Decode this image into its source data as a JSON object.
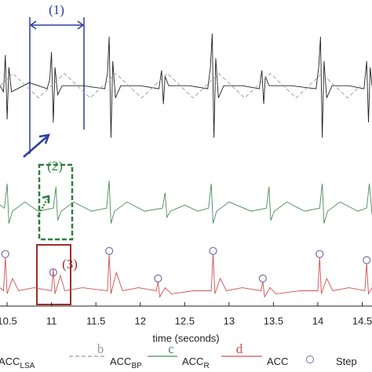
{
  "chart_data": {
    "type": "line",
    "xlabel": "time (seconds)",
    "xlim": [
      10.42,
      14.61
    ],
    "xticks": [
      10.5,
      11,
      11.5,
      12,
      12.5,
      13,
      13.5,
      14,
      14.5
    ],
    "ylim": [
      0,
      100
    ],
    "annotations": [
      "(1)",
      "(2)",
      "(3)"
    ],
    "series": [
      {
        "name": "ACC_LSA",
        "color": "#222222",
        "style": "solid",
        "x": [
          10.42,
          10.46,
          10.48,
          10.5,
          10.52,
          10.55,
          10.75,
          10.95,
          10.98,
          11.0,
          11.02,
          11.04,
          11.07,
          11.12,
          11.35,
          11.6,
          11.63,
          11.65,
          11.67,
          11.69,
          11.72,
          11.78,
          12.0,
          12.21,
          12.24,
          12.26,
          12.28,
          12.32,
          12.55,
          12.76,
          12.79,
          12.81,
          12.83,
          12.85,
          12.88,
          12.94,
          13.15,
          13.34,
          13.37,
          13.39,
          13.41,
          13.45,
          13.7,
          13.98,
          14.01,
          14.03,
          14.05,
          14.07,
          14.1,
          14.16,
          14.35,
          14.52,
          14.55,
          14.57,
          14.59,
          14.61
        ],
        "values": [
          72,
          70,
          82,
          61,
          78,
          70,
          73,
          71,
          74,
          83,
          60,
          78,
          69,
          72,
          72,
          71,
          76,
          88,
          55,
          80,
          68,
          72,
          72,
          71,
          77,
          66,
          75,
          72,
          72,
          71,
          78,
          89,
          55,
          81,
          68,
          72,
          72,
          71,
          77,
          66,
          75,
          72,
          72,
          71,
          78,
          88,
          55,
          80,
          68,
          72,
          72,
          71,
          80,
          60,
          78,
          72
        ]
      },
      {
        "name": "ACC_BP",
        "letter": "b",
        "color": "#999999",
        "style": "dashed",
        "x": [
          10.42,
          10.565,
          10.71,
          10.855,
          11.0,
          11.145,
          11.29,
          11.435,
          11.58,
          11.725,
          11.87,
          12.015,
          12.16,
          12.305,
          12.45,
          12.595,
          12.74,
          12.885,
          13.03,
          13.175,
          13.32,
          13.465,
          13.61,
          13.755,
          13.9,
          14.045,
          14.19,
          14.335,
          14.48
        ],
        "values": [
          72,
          76,
          72,
          68,
          72,
          76,
          72,
          68,
          72,
          76,
          72,
          68,
          72,
          76,
          72,
          68,
          72,
          76,
          72,
          68,
          72,
          76,
          72,
          68,
          72,
          76,
          72,
          68,
          72
        ]
      },
      {
        "name": "ACC_R",
        "letter": "c",
        "color": "#4a8c5c",
        "style": "solid",
        "x": [
          10.42,
          10.47,
          10.5,
          10.52,
          10.56,
          10.7,
          10.85,
          11.02,
          11.05,
          11.07,
          11.11,
          11.25,
          11.45,
          11.62,
          11.65,
          11.67,
          11.71,
          11.85,
          12.05,
          12.25,
          12.28,
          12.3,
          12.34,
          12.5,
          12.65,
          12.77,
          12.8,
          12.82,
          12.86,
          13.0,
          13.25,
          13.42,
          13.45,
          13.47,
          13.51,
          13.65,
          13.85,
          14.02,
          14.05,
          14.07,
          14.11,
          14.25,
          14.45,
          14.55,
          14.58,
          14.61
        ],
        "values": [
          33,
          32,
          40,
          27,
          31,
          34,
          31,
          32,
          39,
          28,
          31,
          34,
          31,
          32,
          41,
          27,
          31,
          34,
          31,
          32,
          37,
          29,
          31,
          33,
          31,
          32,
          40,
          27,
          31,
          34,
          31,
          32,
          39,
          28,
          31,
          34,
          31,
          32,
          40,
          27,
          31,
          34,
          31,
          32,
          40,
          30
        ]
      },
      {
        "name": "ACC",
        "letter": "d",
        "color": "#d05050",
        "style": "solid",
        "x": [
          10.42,
          10.46,
          10.48,
          10.5,
          10.56,
          10.63,
          10.8,
          11.0,
          11.02,
          11.04,
          11.1,
          11.15,
          11.35,
          11.63,
          11.65,
          11.67,
          11.73,
          11.8,
          11.98,
          12.18,
          12.2,
          12.22,
          12.28,
          12.35,
          12.6,
          12.8,
          12.82,
          12.84,
          12.9,
          12.97,
          13.15,
          13.36,
          13.38,
          13.4,
          13.46,
          13.53,
          13.8,
          14.0,
          14.02,
          14.04,
          14.1,
          14.17,
          14.35,
          14.53,
          14.55,
          14.57,
          14.61
        ],
        "values": [
          6,
          5,
          16,
          4,
          9,
          5,
          6,
          5,
          12,
          4,
          10,
          5,
          6,
          5,
          17,
          4,
          11,
          5,
          6,
          5,
          8,
          3,
          6,
          4,
          5,
          5,
          17,
          4,
          9,
          5,
          6,
          5,
          8,
          3,
          6,
          4,
          5,
          5,
          16,
          4,
          9,
          5,
          6,
          5,
          14,
          4,
          6
        ]
      },
      {
        "name": "Step",
        "color": "#7070b0",
        "style": "marker",
        "x": [
          10.48,
          11.02,
          11.65,
          12.2,
          12.82,
          13.38,
          14.02,
          14.55
        ],
        "values": [
          17,
          11,
          18,
          9,
          18,
          9,
          17,
          15
        ]
      }
    ]
  }
}
